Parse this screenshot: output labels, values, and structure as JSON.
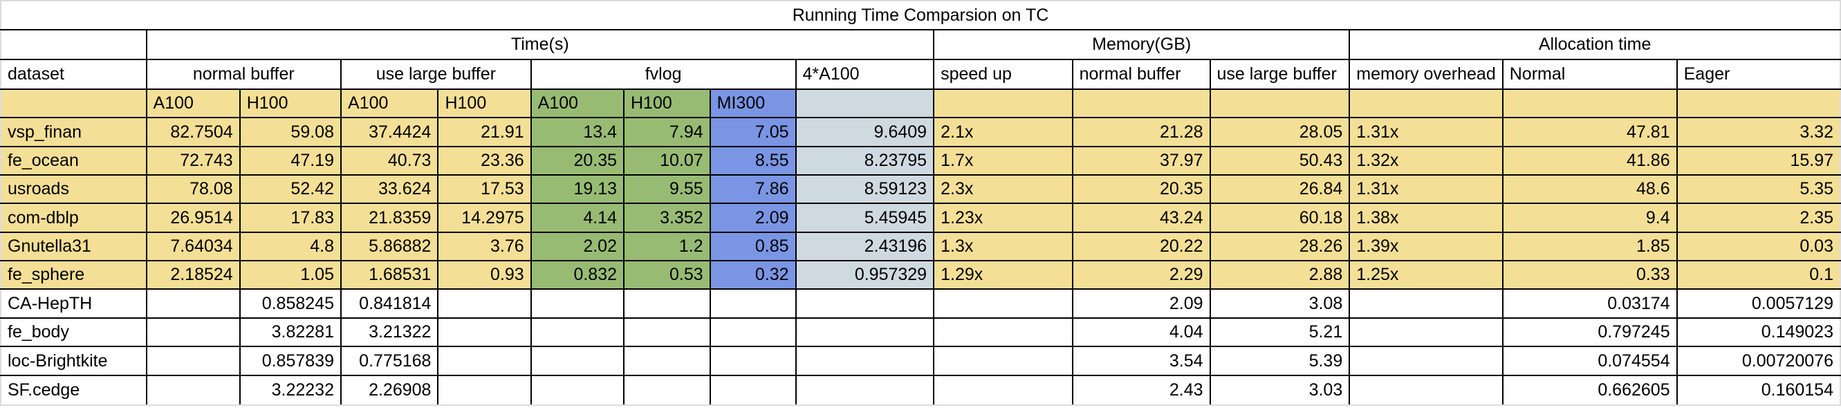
{
  "title": "Running Time Comparsion on TC",
  "groups": {
    "time": "Time(s)",
    "memory": "Memory(GB)",
    "alloc": "Allocation time"
  },
  "subgroups": {
    "dataset": "dataset",
    "normal_buffer": "normal buffer",
    "use_large_buffer": "use large buffer",
    "fvlog": "fvlog",
    "a100x4": "4*A100",
    "speed_up": "speed up",
    "mem_normal_buffer": "normal buffer",
    "mem_use_large_buffer": "use large buffer",
    "memory_overhead": "memory overhead",
    "normal": "Normal",
    "eager": "Eager"
  },
  "devices": [
    "A100",
    "H100",
    "A100",
    "H100",
    "A100",
    "H100",
    "MI300"
  ],
  "colors": {
    "yellow": "#f4df96",
    "green": "#98bb74",
    "blue": "#7a95e3",
    "slate": "#cfd9e0"
  },
  "rows": [
    {
      "name": "vsp_finan",
      "nb_a100": "82.7504",
      "nb_h100": "59.08",
      "lb_a100": "37.4424",
      "lb_h100": "21.91",
      "fv_a100": "13.4",
      "fv_h100": "7.94",
      "fv_mi300": "7.05",
      "a100x4": "9.6409",
      "speed_up": "2.1x",
      "mem_nb": "21.28",
      "mem_lb": "28.05",
      "overhead": "1.31x",
      "normal": "47.81",
      "eager": "3.32"
    },
    {
      "name": "fe_ocean",
      "nb_a100": "72.743",
      "nb_h100": "47.19",
      "lb_a100": "40.73",
      "lb_h100": "23.36",
      "fv_a100": "20.35",
      "fv_h100": "10.07",
      "fv_mi300": "8.55",
      "a100x4": "8.23795",
      "speed_up": "1.7x",
      "mem_nb": "37.97",
      "mem_lb": "50.43",
      "overhead": "1.32x",
      "normal": "41.86",
      "eager": "15.97"
    },
    {
      "name": "usroads",
      "nb_a100": "78.08",
      "nb_h100": "52.42",
      "lb_a100": "33.624",
      "lb_h100": "17.53",
      "fv_a100": "19.13",
      "fv_h100": "9.55",
      "fv_mi300": "7.86",
      "a100x4": "8.59123",
      "speed_up": "2.3x",
      "mem_nb": "20.35",
      "mem_lb": "26.84",
      "overhead": "1.31x",
      "normal": "48.6",
      "eager": "5.35"
    },
    {
      "name": "com-dblp",
      "nb_a100": "26.9514",
      "nb_h100": "17.83",
      "lb_a100": "21.8359",
      "lb_h100": "14.2975",
      "fv_a100": "4.14",
      "fv_h100": "3.352",
      "fv_mi300": "2.09",
      "a100x4": "5.45945",
      "speed_up": "1.23x",
      "mem_nb": "43.24",
      "mem_lb": "60.18",
      "overhead": "1.38x",
      "normal": "9.4",
      "eager": "2.35"
    },
    {
      "name": "Gnutella31",
      "nb_a100": "7.64034",
      "nb_h100": "4.8",
      "lb_a100": "5.86882",
      "lb_h100": "3.76",
      "fv_a100": "2.02",
      "fv_h100": "1.2",
      "fv_mi300": "0.85",
      "a100x4": "2.43196",
      "speed_up": "1.3x",
      "mem_nb": "20.22",
      "mem_lb": "28.26",
      "overhead": "1.39x",
      "normal": "1.85",
      "eager": "0.03"
    },
    {
      "name": "fe_sphere",
      "nb_a100": "2.18524",
      "nb_h100": "1.05",
      "lb_a100": "1.68531",
      "lb_h100": "0.93",
      "fv_a100": "0.832",
      "fv_h100": "0.53",
      "fv_mi300": "0.32",
      "a100x4": "0.957329",
      "speed_up": "1.29x",
      "mem_nb": "2.29",
      "mem_lb": "2.88",
      "overhead": "1.25x",
      "normal": "0.33",
      "eager": "0.1"
    },
    {
      "name": "CA-HepTH",
      "nb_a100": "",
      "nb_h100": "0.858245",
      "lb_a100": "0.841814",
      "lb_h100": "",
      "fv_a100": "",
      "fv_h100": "",
      "fv_mi300": "",
      "a100x4": "",
      "speed_up": "",
      "mem_nb": "2.09",
      "mem_lb": "3.08",
      "overhead": "",
      "normal": "0.03174",
      "eager": "0.0057129"
    },
    {
      "name": "fe_body",
      "nb_a100": "",
      "nb_h100": "3.82281",
      "lb_a100": "3.21322",
      "lb_h100": "",
      "fv_a100": "",
      "fv_h100": "",
      "fv_mi300": "",
      "a100x4": "",
      "speed_up": "",
      "mem_nb": "4.04",
      "mem_lb": "5.21",
      "overhead": "",
      "normal": "0.797245",
      "eager": "0.149023"
    },
    {
      "name": "loc-Brightkite",
      "nb_a100": "",
      "nb_h100": "0.857839",
      "lb_a100": "0.775168",
      "lb_h100": "",
      "fv_a100": "",
      "fv_h100": "",
      "fv_mi300": "",
      "a100x4": "",
      "speed_up": "",
      "mem_nb": "3.54",
      "mem_lb": "5.39",
      "overhead": "",
      "normal": "0.074554",
      "eager": "0.00720076"
    },
    {
      "name": "SF.cedge",
      "nb_a100": "",
      "nb_h100": "3.22232",
      "lb_a100": "2.26908",
      "lb_h100": "",
      "fv_a100": "",
      "fv_h100": "",
      "fv_mi300": "",
      "a100x4": "",
      "speed_up": "",
      "mem_nb": "2.43",
      "mem_lb": "3.03",
      "overhead": "",
      "normal": "0.662605",
      "eager": "0.160154"
    }
  ]
}
